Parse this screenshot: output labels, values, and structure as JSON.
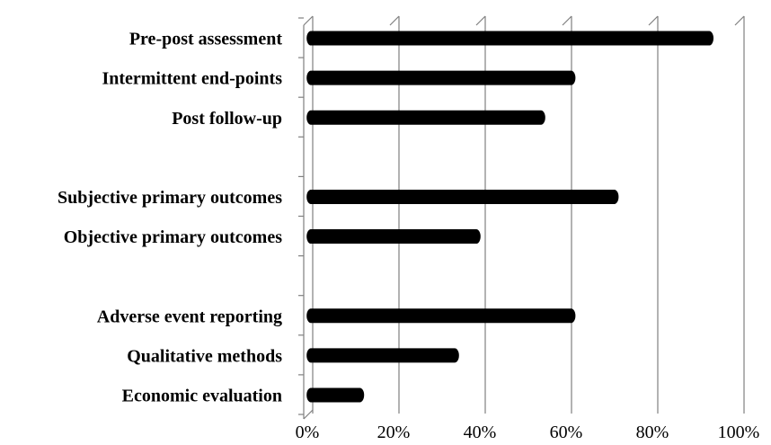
{
  "chart_data": {
    "type": "bar",
    "orientation": "horizontal",
    "title": "",
    "xlabel": "",
    "ylabel": "",
    "xlim": [
      0,
      100
    ],
    "x_ticks": [
      "0%",
      "20%",
      "40%",
      "60%",
      "80%",
      "100%"
    ],
    "x_tick_values": [
      0,
      20,
      40,
      60,
      80,
      100
    ],
    "grid": true,
    "legend": "none",
    "bar_color": "#000000",
    "style": "3d cylinder bars",
    "categories": [
      "Pre-post assessment",
      "Intermittent end-points",
      "Post follow-up",
      "",
      "Subjective primary outcomes",
      "Objective primary outcomes",
      "",
      "Adverse event reporting",
      "Qualitative methods",
      "Economic evaluation"
    ],
    "values": [
      94,
      62,
      55,
      null,
      72,
      40,
      null,
      62,
      35,
      13
    ],
    "unit": "%"
  }
}
